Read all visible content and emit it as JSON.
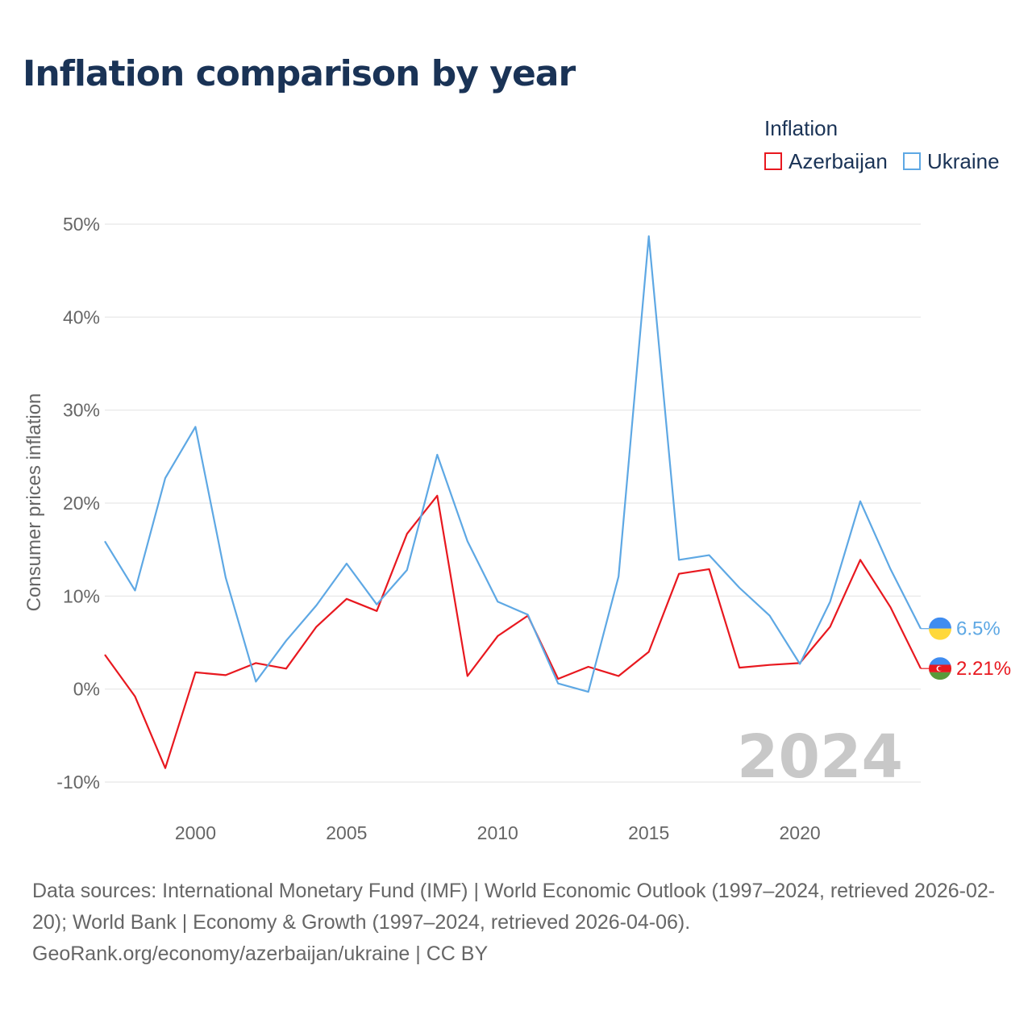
{
  "title": "Inflation comparison by year",
  "legend": {
    "title": "Inflation",
    "items": [
      {
        "name": "Azerbaijan",
        "color": "#e8181f"
      },
      {
        "name": "Ukraine",
        "color": "#5ea8e4"
      }
    ]
  },
  "source": {
    "line1": "Data sources: International Monetary Fund (IMF) | World Economic Outlook (1997–2024, retrieved 2026-02-20); World Bank | Economy & Growth (1997–2024, retrieved 2026-04-06).",
    "line2": "GeoRank.org/economy/azerbaijan/ukraine | CC BY"
  },
  "chart_data": {
    "type": "line",
    "title": "Inflation comparison by year",
    "ylabel": "Consumer prices inflation",
    "xlabel": "",
    "ylim": [
      -10,
      50
    ],
    "xlim": [
      1997,
      2024
    ],
    "yticks": [
      -10,
      0,
      10,
      20,
      30,
      40,
      50
    ],
    "ytick_labels": [
      "-10%",
      "0%",
      "10%",
      "20%",
      "30%",
      "40%",
      "50%"
    ],
    "xticks": [
      2000,
      2005,
      2010,
      2015,
      2020
    ],
    "xtick_labels": [
      "2000",
      "2005",
      "2010",
      "2015",
      "2020"
    ],
    "year_marker": "2024",
    "grid": true,
    "x": [
      1997,
      1998,
      1999,
      2000,
      2001,
      2002,
      2003,
      2004,
      2005,
      2006,
      2007,
      2008,
      2009,
      2010,
      2011,
      2012,
      2013,
      2014,
      2015,
      2016,
      2017,
      2018,
      2019,
      2020,
      2021,
      2022,
      2023,
      2024
    ],
    "series": [
      {
        "name": "Azerbaijan",
        "color": "#e8181f",
        "end_label": "2.21%",
        "values": [
          3.7,
          -0.8,
          -8.5,
          1.8,
          1.5,
          2.8,
          2.2,
          6.7,
          9.7,
          8.4,
          16.7,
          20.8,
          1.4,
          5.7,
          7.9,
          1.1,
          2.4,
          1.4,
          4.0,
          12.4,
          12.9,
          2.3,
          2.6,
          2.8,
          6.7,
          13.9,
          8.8,
          2.21
        ]
      },
      {
        "name": "Ukraine",
        "color": "#5ea8e4",
        "end_label": "6.5%",
        "values": [
          15.9,
          10.6,
          22.7,
          28.2,
          12.0,
          0.8,
          5.2,
          9.0,
          13.5,
          9.1,
          12.8,
          25.2,
          15.9,
          9.4,
          8.0,
          0.6,
          -0.3,
          12.1,
          48.7,
          13.9,
          14.4,
          10.9,
          7.9,
          2.7,
          9.4,
          20.2,
          12.9,
          6.5
        ]
      }
    ]
  }
}
